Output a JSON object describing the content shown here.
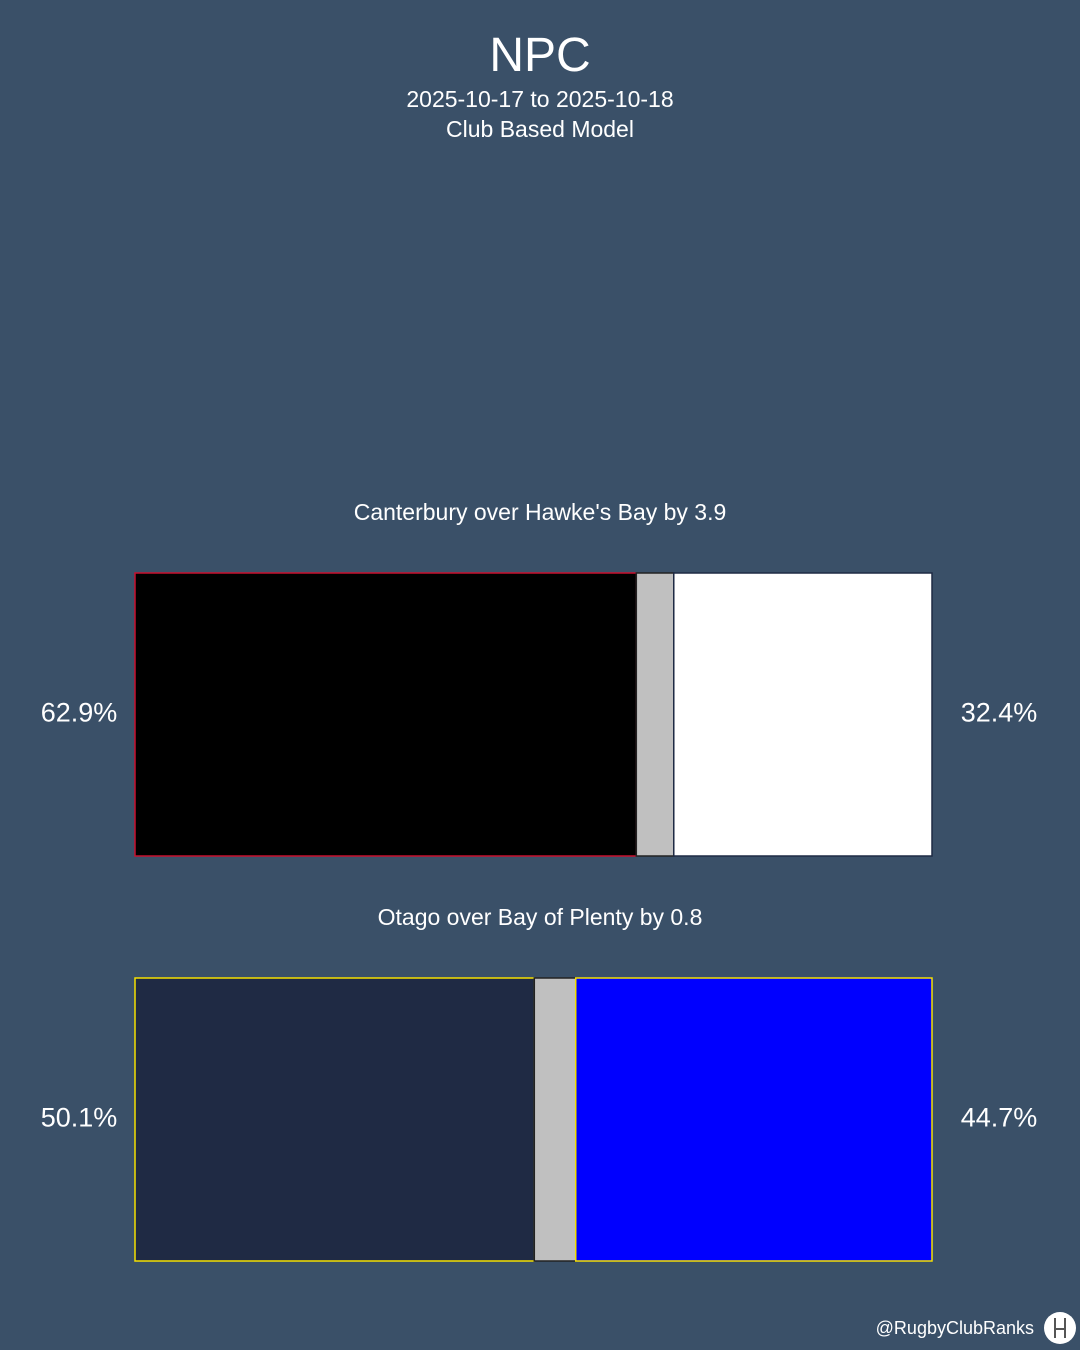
{
  "header": {
    "title": "NPC",
    "date_range": "2025-10-17 to 2025-10-18",
    "model": "Club Based Model"
  },
  "chart_data": {
    "type": "bar",
    "orientation": "horizontal-stacked",
    "matches": [
      {
        "label": "Canterbury over Hawke's Bay by 3.9",
        "home_team": "Canterbury",
        "away_team": "Hawke's Bay",
        "home_pct": 62.9,
        "draw_pct": 4.7,
        "away_pct": 32.4,
        "home_label": "62.9%",
        "away_label": "32.4%",
        "home_fill": "#000000",
        "home_stroke": "#c8102e",
        "draw_fill": "#c0c0c0",
        "away_fill": "#ffffff",
        "away_stroke": "#1e2a44"
      },
      {
        "label": "Otago over Bay of Plenty by 0.8",
        "home_team": "Otago",
        "away_team": "Bay of Plenty",
        "home_pct": 50.1,
        "draw_pct": 5.2,
        "away_pct": 44.7,
        "home_label": "50.1%",
        "away_label": "44.7%",
        "home_fill": "#1f2a44",
        "home_stroke": "#f5e000",
        "draw_fill": "#c0c0c0",
        "away_fill": "#0000ff",
        "away_stroke": "#f5e000"
      }
    ]
  },
  "footer": {
    "handle": "@RugbyClubRanks",
    "logo_icon": "rugby-posts-icon"
  }
}
